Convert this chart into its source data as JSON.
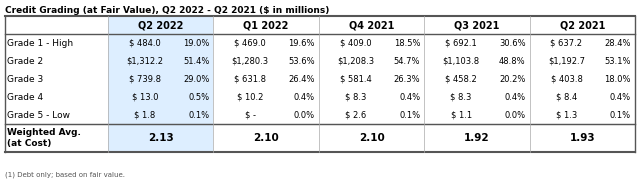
{
  "title": "Credit Grading (at Fair Value), Q2 2022 - Q2 2021 ($ in millions)",
  "footnote": "(1) Debt only; based on fair value.",
  "columns": [
    "",
    "Q2 2022",
    "",
    "Q1 2022",
    "",
    "Q4 2021",
    "",
    "Q3 2021",
    "",
    "Q2 2021",
    ""
  ],
  "col_headers": [
    "Q2 2022",
    "Q1 2022",
    "Q4 2021",
    "Q3 2021",
    "Q2 2021"
  ],
  "rows": [
    [
      "Grade 1 - High",
      "$ 484.0",
      "19.0%",
      "$ 469.0",
      "19.6%",
      "$ 409.0",
      "18.5%",
      "$ 692.1",
      "30.6%",
      "$ 637.2",
      "28.4%"
    ],
    [
      "Grade 2",
      "$1,312.2",
      "51.4%",
      "$1,280.3",
      "53.6%",
      "$1,208.3",
      "54.7%",
      "$1,103.8",
      "48.8%",
      "$1,192.7",
      "53.1%"
    ],
    [
      "Grade 3",
      "$ 739.8",
      "29.0%",
      "$ 631.8",
      "26.4%",
      "$ 581.4",
      "26.3%",
      "$ 458.2",
      "20.2%",
      "$ 403.8",
      "18.0%"
    ],
    [
      "Grade 4",
      "$ 13.0",
      "0.5%",
      "$ 10.2",
      "0.4%",
      "$ 8.3",
      "0.4%",
      "$ 8.3",
      "0.4%",
      "$ 8.4",
      "0.4%"
    ],
    [
      "Grade 5 - Low",
      "$ 1.8",
      "0.1%",
      "$ -",
      "0.0%",
      "$ 2.6",
      "0.1%",
      "$ 1.1",
      "0.0%",
      "$ 1.3",
      "0.1%"
    ]
  ],
  "weighted_avg": [
    "Weighted Avg.\n(at Cost)",
    "2.13",
    "2.10",
    "2.10",
    "1.92",
    "1.93"
  ],
  "header_bg": "#ddeeff",
  "col1_bg": "#ddeeff",
  "white_bg": "#ffffff",
  "header_line_color": "#333333",
  "text_color": "#000000",
  "bold_color": "#000000"
}
